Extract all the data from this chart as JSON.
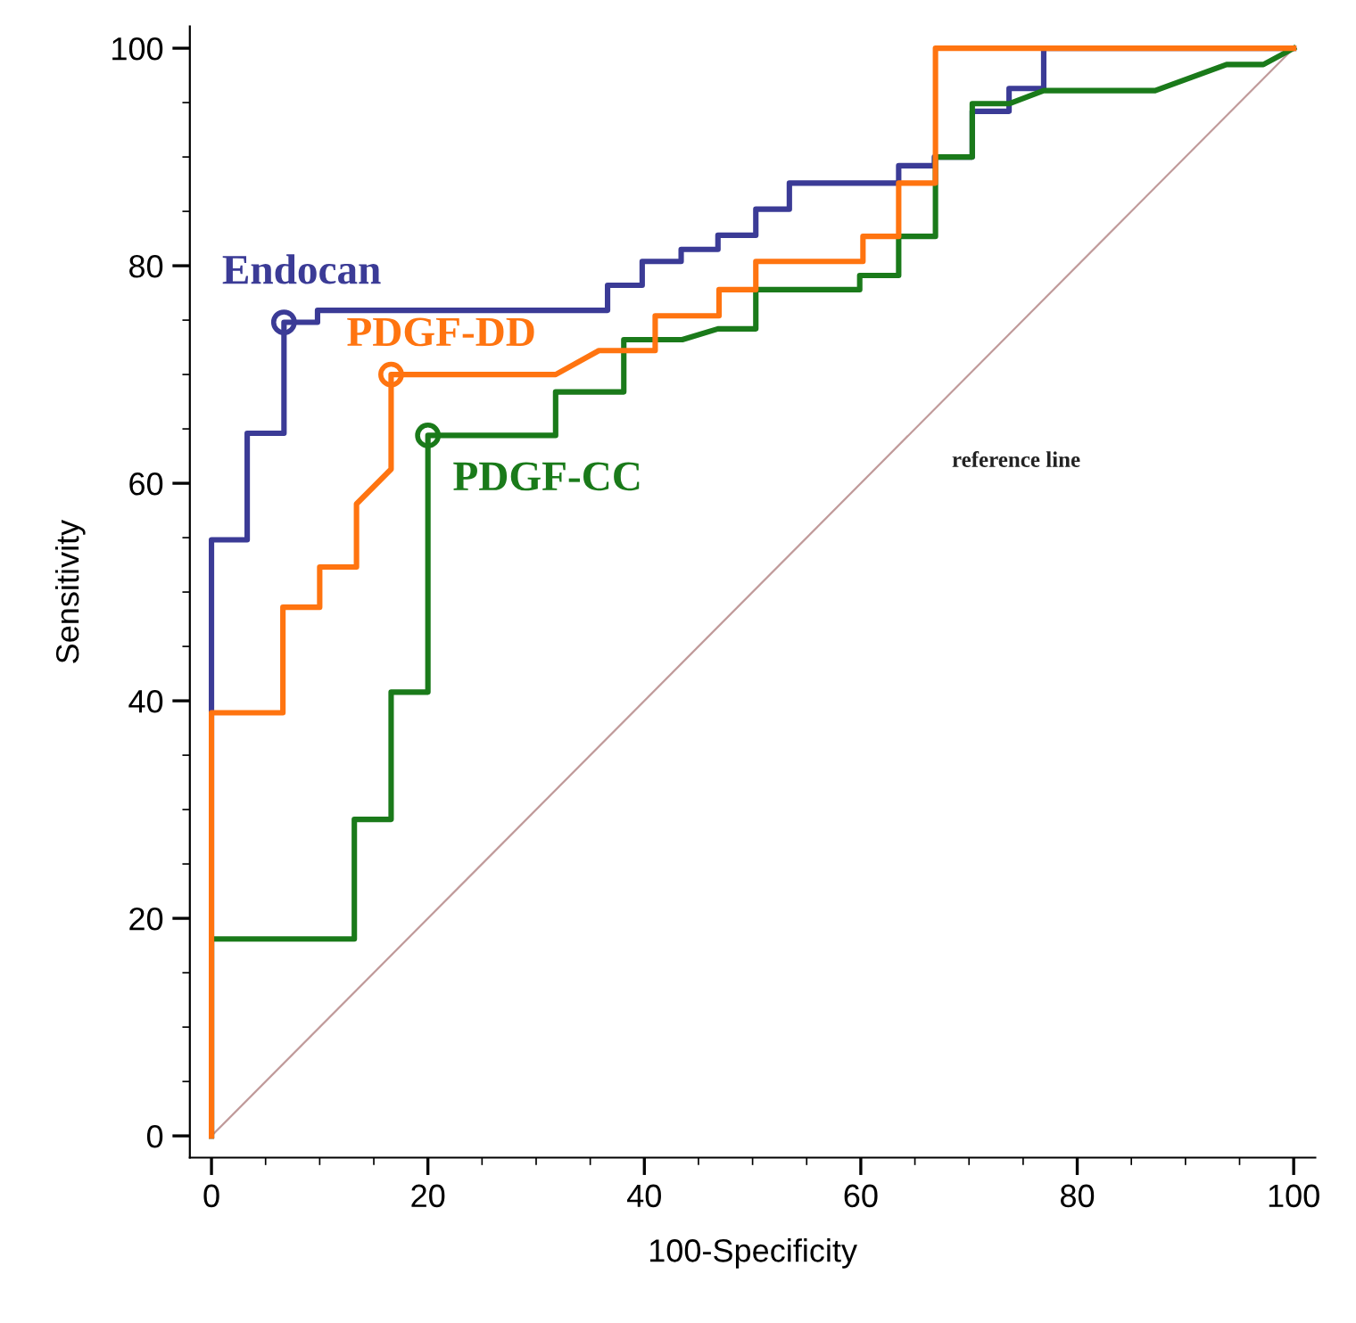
{
  "chart_data": {
    "type": "line",
    "xlabel": "100-Specificity",
    "ylabel": "Sensitivity",
    "xlim": [
      -2,
      102
    ],
    "ylim": [
      -2,
      102
    ],
    "xticks": [
      0,
      20,
      40,
      60,
      80,
      100
    ],
    "yticks": [
      0,
      20,
      40,
      60,
      80,
      100
    ],
    "grid": false,
    "legend": false,
    "marker": "none",
    "line_style": "solid",
    "series": [
      {
        "name": "reference line",
        "color": "#c09a9a",
        "x": [
          0,
          100
        ],
        "values": [
          0,
          100
        ]
      },
      {
        "name": "Endocan",
        "color": "#3b3b96",
        "x": [
          0,
          0,
          3.3,
          3.3,
          6.7,
          6.7,
          9.8,
          9.8,
          36.6,
          36.6,
          39.8,
          39.8,
          43.4,
          43.4,
          46.8,
          46.8,
          50.3,
          50.3,
          53.4,
          53.4,
          63.5,
          63.5,
          66.8,
          66.8,
          70.3,
          70.3,
          73.7,
          73.7,
          76.9,
          76.9,
          100
        ],
        "values": [
          0,
          54.8,
          54.8,
          64.6,
          64.6,
          74.8,
          74.8,
          75.9,
          75.9,
          78.2,
          78.2,
          80.4,
          80.4,
          81.5,
          81.5,
          82.8,
          82.8,
          85.2,
          85.2,
          87.6,
          87.6,
          89.2,
          89.2,
          90.0,
          90.0,
          94.2,
          94.2,
          96.3,
          96.3,
          100,
          100
        ]
      },
      {
        "name": "PDGF-CC",
        "color": "#1a7a1a",
        "x": [
          0,
          0,
          13.2,
          13.2,
          16.6,
          16.6,
          20.0,
          20.0,
          31.8,
          31.8,
          38.1,
          38.1,
          43.5,
          46.8,
          50.3,
          50.3,
          59.9,
          59.9,
          63.5,
          63.5,
          66.9,
          66.9,
          70.3,
          70.3,
          73.7,
          76.9,
          87.2,
          93.8,
          97.2,
          100
        ],
        "values": [
          0,
          18.1,
          18.1,
          29.1,
          29.1,
          40.8,
          40.8,
          64.4,
          64.4,
          68.4,
          68.4,
          73.2,
          73.2,
          74.2,
          74.2,
          77.8,
          77.8,
          79.1,
          79.1,
          82.7,
          82.7,
          90.0,
          90.0,
          94.9,
          94.9,
          96.1,
          96.1,
          98.5,
          98.5,
          100
        ]
      },
      {
        "name": "PDGF-DD",
        "color": "#ff7410",
        "x": [
          0,
          0,
          6.6,
          6.6,
          10.0,
          10.0,
          13.4,
          13.4,
          16.6,
          16.6,
          31.8,
          35.8,
          41.0,
          41.0,
          46.9,
          46.9,
          50.3,
          50.3,
          60.2,
          60.2,
          63.5,
          63.5,
          66.9,
          66.9,
          100
        ],
        "values": [
          0,
          38.9,
          38.9,
          48.6,
          48.6,
          52.3,
          52.3,
          58.1,
          61.3,
          70.0,
          70.0,
          72.2,
          72.2,
          75.4,
          75.4,
          77.8,
          77.8,
          80.4,
          80.4,
          82.7,
          82.7,
          87.6,
          87.6,
          100,
          100
        ]
      },
      {
        "type": "scatter",
        "marker": "circle",
        "x": [
          6.7,
          16.6,
          20.0
        ],
        "values": [
          74.8,
          70.0,
          64.4
        ],
        "colors": [
          "#3b3b96",
          "#ff7410",
          "#1a7a1a"
        ]
      }
    ]
  }
}
